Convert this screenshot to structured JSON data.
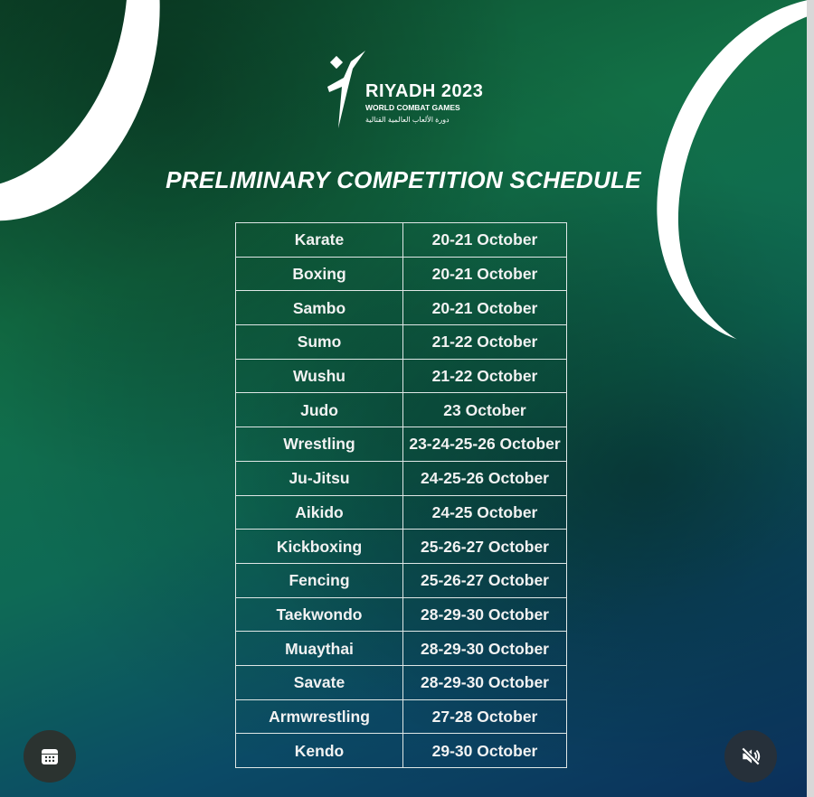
{
  "logo": {
    "line1": "RIYADH 2023",
    "line2": "WORLD COMBAT GAMES",
    "line3": "دورة الألعاب العالمية القتالية"
  },
  "title": "PRELIMINARY COMPETITION SCHEDULE",
  "schedule": [
    {
      "sport": "Karate",
      "dates": "20-21 October"
    },
    {
      "sport": "Boxing",
      "dates": "20-21 October"
    },
    {
      "sport": "Sambo",
      "dates": "20-21 October"
    },
    {
      "sport": "Sumo",
      "dates": "21-22 October"
    },
    {
      "sport": "Wushu",
      "dates": "21-22 October"
    },
    {
      "sport": "Judo",
      "dates": "23 October"
    },
    {
      "sport": "Wrestling",
      "dates": "23-24-25-26 October"
    },
    {
      "sport": "Ju-Jitsu",
      "dates": "24-25-26 October"
    },
    {
      "sport": "Aikido",
      "dates": "24-25 October"
    },
    {
      "sport": "Kickboxing",
      "dates": "25-26-27 October"
    },
    {
      "sport": "Fencing",
      "dates": "25-26-27 October"
    },
    {
      "sport": "Taekwondo",
      "dates": "28-29-30 October"
    },
    {
      "sport": "Muaythai",
      "dates": "28-29-30 October"
    },
    {
      "sport": "Savate",
      "dates": "28-29-30 October"
    },
    {
      "sport": "Armwrestling",
      "dates": "27-28 October"
    },
    {
      "sport": "Kendo",
      "dates": "29-30 October"
    }
  ],
  "controls": {
    "left_icon": "calendar-icon",
    "right_icon": "volume-muted-icon"
  }
}
